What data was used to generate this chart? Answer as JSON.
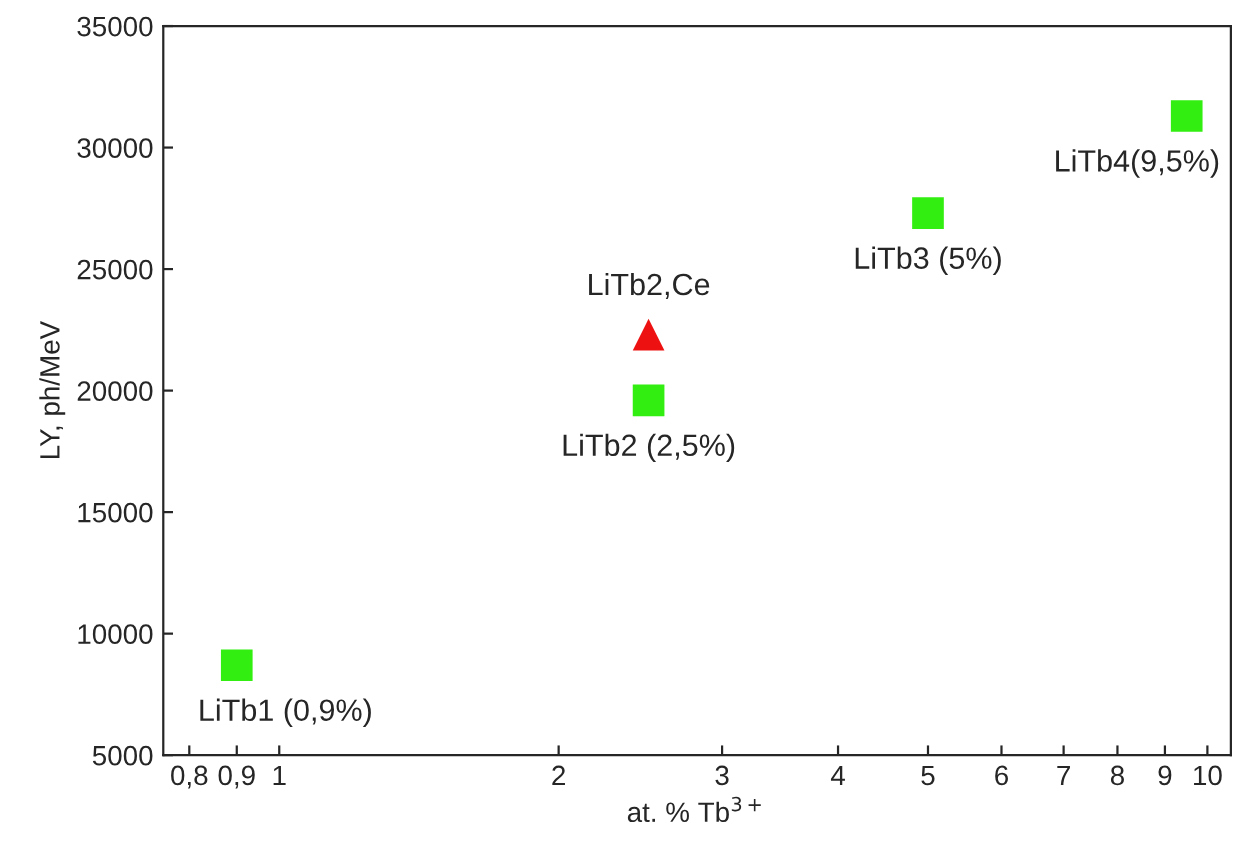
{
  "chart_data": {
    "type": "scatter",
    "xlabel": "at. % Tb$^{3+}$",
    "ylabel": "LY, ph/MeV",
    "log": "x",
    "grid": false,
    "legend": false,
    "xlim": [
      0.75,
      10.6
    ],
    "xticks": [
      {
        "value": 0.8,
        "label": "0,8"
      },
      {
        "value": 0.9,
        "label": "0,9"
      },
      1,
      2,
      3,
      4,
      5,
      6,
      7,
      8,
      9,
      10
    ],
    "ylim": [
      5000,
      35000
    ],
    "yticks": [
      5000,
      10000,
      15000,
      20000,
      25000,
      30000,
      35000
    ],
    "series": [
      {
        "color": "#33ee11",
        "marker": "square",
        "x": [
          0.9,
          2.5,
          5,
          9.5
        ],
        "values": [
          8700,
          19600,
          27300,
          31300
        ]
      },
      {
        "color": "#ee1111",
        "marker": "triangle",
        "x": [
          2.5
        ],
        "values": [
          22300
        ]
      }
    ],
    "annotations": [
      {
        "text": "LiTb1 (0,9%)",
        "x": 0.9,
        "y": 8700
      },
      {
        "text": "LiTb2 (2,5%)",
        "x": 2.5,
        "y": 19600
      },
      {
        "text": "LiTb3 (5%)",
        "x": 5,
        "y": 27300
      },
      {
        "text": "LiTb4(9,5%)",
        "x": 9.5,
        "y": 31300
      },
      {
        "text": "LiTb2,Ce",
        "x": 2.5,
        "y": 22300
      }
    ]
  }
}
